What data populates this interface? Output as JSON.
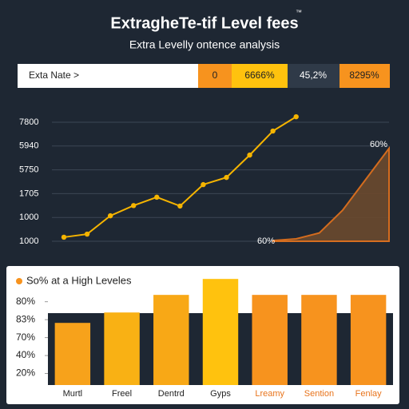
{
  "header": {
    "title": "ExtragheTe-tif Level fees",
    "mark": "™",
    "subtitle": "Extra Levelly ontence analysis"
  },
  "top_bar": {
    "label": "Exta Nate >",
    "cells": [
      "0",
      "6666%",
      "45,2%",
      "8295%"
    ]
  },
  "chart_data": [
    {
      "type": "line",
      "categories": [
        null,
        null,
        null,
        null,
        null,
        null,
        null,
        null,
        null,
        null,
        null,
        null,
        null,
        null,
        null
      ],
      "series": [
        {
          "color": "#f5b400",
          "values": [
            0.17,
            0.3,
            1.07,
            1.5,
            1.85,
            1.48,
            2.38,
            2.68,
            3.62,
            4.63,
            5.23,
            null,
            null,
            null,
            null
          ]
        },
        {
          "color": "#e8741c",
          "area": true,
          "values": [
            null,
            null,
            null,
            null,
            null,
            null,
            null,
            null,
            null,
            0.03,
            0.1,
            0.35,
            1.3,
            2.6,
            3.9
          ]
        }
      ],
      "ylim": [
        0,
        5.5
      ],
      "yticks": [
        {
          "value": 0,
          "label": "1000"
        },
        {
          "value": 1,
          "label": "1000"
        },
        {
          "value": 2,
          "label": "1705"
        },
        {
          "value": 3,
          "label": "5750"
        },
        {
          "value": 4,
          "label": "5940"
        },
        {
          "value": 5,
          "label": "7800"
        }
      ],
      "grid": true,
      "annotations": [
        "60%",
        "60%"
      ]
    },
    {
      "type": "bar",
      "title": "So% at a High Leveles",
      "categories": [
        "Murtl",
        "Freel",
        "Dentrd",
        "Gyps",
        "Lreamy",
        "Sention",
        "Fenlay"
      ],
      "values": [
        3.82,
        4.4,
        5.38,
        6.27,
        5.38,
        5.38,
        5.38
      ],
      "colors": [
        "#f7a21b",
        "#f9b114",
        "#f8a816",
        "#ffc20e",
        "#f7931e",
        "#f7931e",
        "#f7931e"
      ],
      "label_colors": [
        "#222222",
        "#222222",
        "#222222",
        "#222222",
        "#e8741c",
        "#e8741c",
        "#e8741c"
      ],
      "ylim": [
        0,
        6.5
      ],
      "yticks": [
        {
          "value": 1,
          "label": "20%"
        },
        {
          "value": 2,
          "label": "40%"
        },
        {
          "value": 3,
          "label": "70%"
        },
        {
          "value": 4,
          "label": "83%"
        },
        {
          "value": 5,
          "label": "80%"
        }
      ]
    }
  ]
}
